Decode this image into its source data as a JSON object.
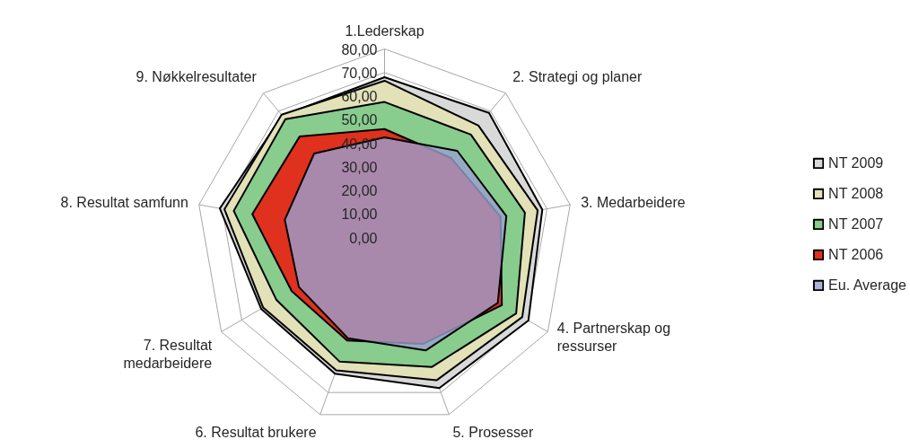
{
  "chart_data": {
    "type": "radar",
    "categories": [
      "1.Lederskap",
      "2. Strategi og planer",
      "3. Medarbeidere",
      "4. Partnerskap og ressurser",
      "5. Prosesser",
      "6. Resultat brukere",
      "7. Resultat medarbeidere",
      "8. Resultat samfunn",
      "9. Nøkkelresultater"
    ],
    "series": [
      {
        "name": "NT 2009",
        "color": "#d9d9d9",
        "values": [
          68,
          69,
          68,
          70.5,
          68,
          61.5,
          60.5,
          71,
          67.5
        ]
      },
      {
        "name": "NT 2008",
        "color": "#e2e1b8",
        "values": [
          66.5,
          62,
          66,
          67.5,
          64.5,
          60,
          59.5,
          69,
          68
        ]
      },
      {
        "name": "NT 2007",
        "color": "#88cc8e",
        "values": [
          57.5,
          57,
          60.5,
          64.5,
          58.5,
          56,
          53,
          65,
          65.5
        ]
      },
      {
        "name": "NT 2006",
        "color": "#e0301e",
        "values": [
          46,
          44,
          50,
          57.5,
          48,
          46.5,
          45.5,
          57,
          56
        ]
      },
      {
        "name": "Eu. Average",
        "color": "#9aa0d0",
        "values": [
          42.5,
          48,
          52.5,
          55.5,
          51,
          45.5,
          42,
          43,
          46.5
        ]
      }
    ],
    "ylim": [
      0,
      80
    ],
    "yticks": [
      {
        "value": 0,
        "label": "0,00"
      },
      {
        "value": 10,
        "label": "10,00"
      },
      {
        "value": 20,
        "label": "20,00"
      },
      {
        "value": 30,
        "label": "30,00"
      },
      {
        "value": 40,
        "label": "40,00"
      },
      {
        "value": 50,
        "label": "50,00"
      },
      {
        "value": 60,
        "label": "60,00"
      },
      {
        "value": 70,
        "label": "70,00"
      },
      {
        "value": 80,
        "label": "80,00"
      }
    ],
    "grid": true,
    "legend": "right"
  }
}
